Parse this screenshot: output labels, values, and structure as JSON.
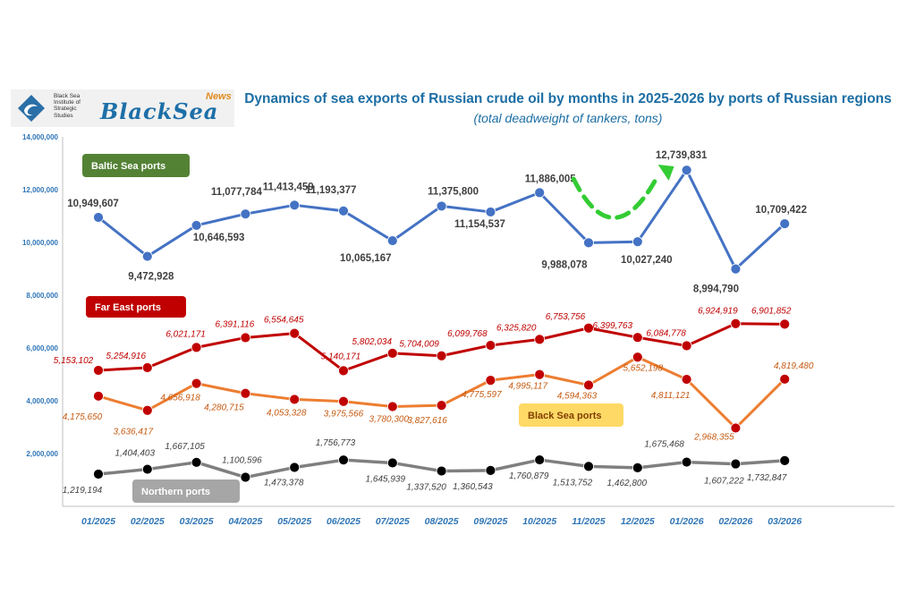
{
  "logo": {
    "institute": [
      "Black Sea",
      "Institute of",
      "Strategic",
      "Studies"
    ],
    "brand": "BlackSea",
    "brand_suffix": "News"
  },
  "chart_data": {
    "type": "line",
    "title": "Dynamics of sea exports of Russian crude oil by months in 2025-2026 by ports of Russian regions",
    "subtitle": "(total deadweight of tankers, tons)",
    "xlabel": "",
    "ylabel": "",
    "ylim": [
      0,
      14000000
    ],
    "yticks": [
      0,
      2000000,
      4000000,
      6000000,
      8000000,
      10000000,
      12000000,
      14000000
    ],
    "ytick_labels": [
      "",
      "2,000,000",
      "4,000,000",
      "6,000,000",
      "8,000,000",
      "10,000,000",
      "12,000,000",
      "14,000,000"
    ],
    "grid": false,
    "categories": [
      "01/2025",
      "02/2025",
      "03/2025",
      "04/2025",
      "05/2025",
      "06/2025",
      "07/2025",
      "08/2025",
      "09/2025",
      "10/2025",
      "11/2025",
      "12/2025",
      "01/2026",
      "02/2026",
      "03/2026"
    ],
    "series": [
      {
        "name": "Baltic Sea ports",
        "color": "#4472c4",
        "legend_color": "#548235",
        "values": [
          10949607,
          9472928,
          10646593,
          11077784,
          11413459,
          11193377,
          10065167,
          11375800,
          11154537,
          11886005,
          9988078,
          10027240,
          12739831,
          8994790,
          10709422
        ],
        "labels": [
          "10,949,607",
          "9,472,928",
          "10,646,593",
          "11,077,784",
          "11,413,459",
          "11,193,377",
          "10,065,167",
          "11,375,800",
          "11,154,537",
          "11,886,005",
          "9,988,078",
          "10,027,240",
          "12,739,831",
          "8,994,790",
          "10,709,422"
        ],
        "label_style": "bold"
      },
      {
        "name": "Far East ports",
        "color": "#c00000",
        "legend_color": "#c00000",
        "values": [
          5153102,
          5254916,
          6021171,
          6391116,
          6554645,
          5140171,
          5802034,
          5704009,
          6099768,
          6325820,
          6753756,
          6399763,
          6084778,
          6924919,
          6901852
        ],
        "labels": [
          "5,153,102",
          "5,254,916",
          "6,021,171",
          "6,391,116",
          "6,554,645",
          "5,140,171",
          "5,802,034",
          "5,704,009",
          "6,099,768",
          "6,325,820",
          "6,753,756",
          "6,399,763",
          "6,084,778",
          "6,924,919",
          "6,901,852"
        ],
        "label_style": "italic"
      },
      {
        "name": "Black Sea ports",
        "color": "#ed7d31",
        "legend_color": "#ffd966",
        "values": [
          4175650,
          3636417,
          4656918,
          4280715,
          4053328,
          3975566,
          3780300,
          3827616,
          4775597,
          4995117,
          4594363,
          5652198,
          4811121,
          2968355,
          4819480
        ],
        "labels": [
          "4,175,650",
          "3,636,417",
          "4,656,918",
          "4,280,715",
          "4,053,328",
          "3,975,566",
          "3,780,300",
          "3,827,616",
          "4,775,597",
          "4,995,117",
          "4,594,363",
          "5,652,198",
          "4,811,121",
          "2,968,355",
          "4,819,480"
        ],
        "label_style": "italic"
      },
      {
        "name": "Northern ports",
        "color": "#7f7f7f",
        "legend_color": "#a6a6a6",
        "values": [
          1219194,
          1404403,
          1667105,
          1100596,
          1473378,
          1756773,
          1645939,
          1337520,
          1360543,
          1760879,
          1513752,
          1462800,
          1675468,
          1607222,
          1732847
        ],
        "labels": [
          "1,219,194",
          "1,404,403",
          "1,667,105",
          "1,100,596",
          "1,473,378",
          "1,756,773",
          "1,645,939",
          "1,337,520",
          "1,360,543",
          "1,760,879",
          "1,513,752",
          "1,462,800",
          "1,675,468",
          "1,607,222",
          "1,732,847"
        ],
        "label_style": "italic"
      }
    ],
    "annotations": [
      {
        "type": "dashed-arrow",
        "color": "#33cc33",
        "from_category": "10/2025",
        "to_category": "01/2026"
      }
    ]
  }
}
